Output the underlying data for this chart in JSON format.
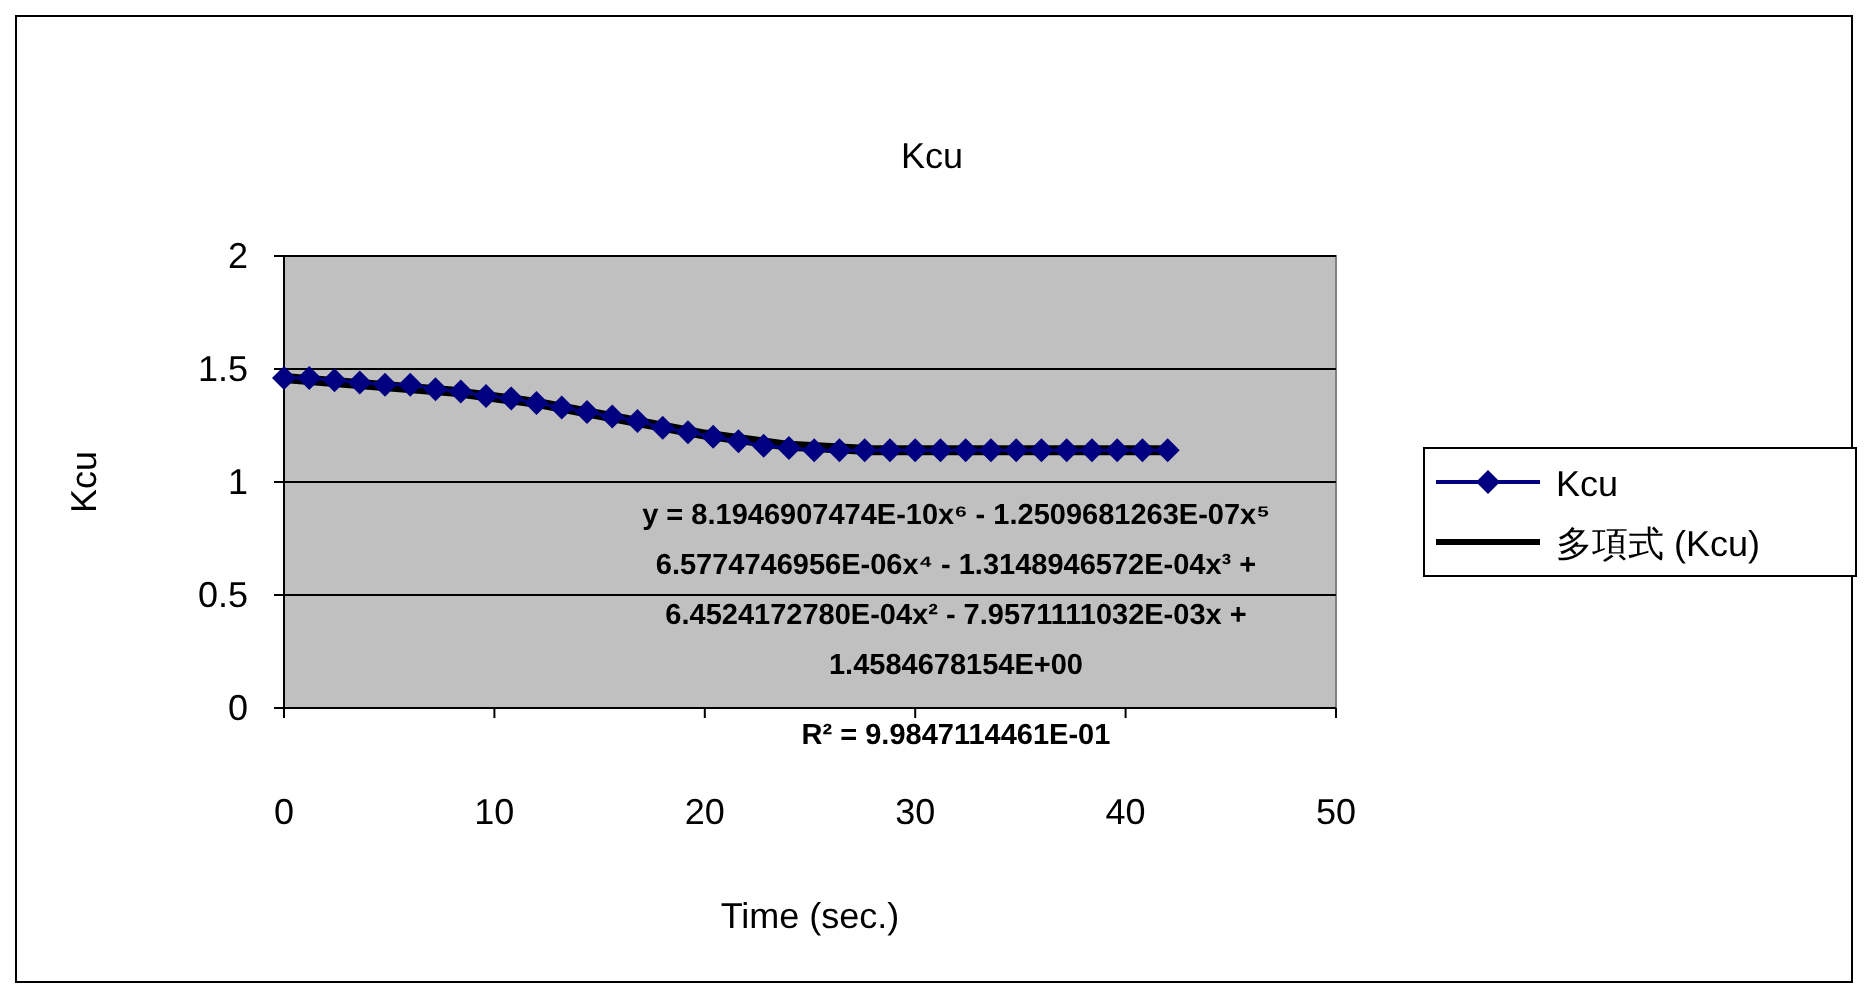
{
  "chart_data": {
    "type": "line",
    "title": "Kcu",
    "xlabel": "Time (sec.)",
    "ylabel": "Kcu",
    "xlim": [
      0,
      50
    ],
    "xticks": [
      0,
      10,
      20,
      30,
      40,
      50
    ],
    "ylim": [
      0,
      2
    ],
    "yticks": [
      0,
      0.5,
      1,
      1.5,
      2
    ],
    "grid": "y",
    "legend": "right",
    "series": [
      {
        "name": "Kcu",
        "color": "#000080",
        "marker": "diamond",
        "x": [
          0,
          1.2,
          2.4,
          3.6,
          4.8,
          6,
          7.2,
          8.4,
          9.6,
          10.8,
          12,
          13.2,
          14.4,
          15.6,
          16.8,
          18,
          19.2,
          20.4,
          21.6,
          22.8,
          24,
          25.2,
          26.4,
          27.6,
          28.8,
          30,
          31.2,
          32.4,
          33.6,
          34.8,
          36,
          37.2,
          38.4,
          39.6,
          40.8,
          42
        ],
        "values": [
          1.46,
          1.46,
          1.45,
          1.44,
          1.43,
          1.43,
          1.41,
          1.4,
          1.38,
          1.37,
          1.35,
          1.33,
          1.31,
          1.29,
          1.27,
          1.24,
          1.22,
          1.2,
          1.18,
          1.16,
          1.15,
          1.14,
          1.14,
          1.14,
          1.14,
          1.14,
          1.14,
          1.14,
          1.14,
          1.14,
          1.14,
          1.14,
          1.14,
          1.14,
          1.14,
          1.14
        ]
      },
      {
        "name": "多項式 (Kcu)",
        "color": "#000000",
        "marker": "none",
        "x": [
          0,
          4,
          8,
          12,
          16,
          20,
          24,
          28,
          32,
          36,
          40,
          42
        ],
        "values": [
          1.46,
          1.43,
          1.4,
          1.35,
          1.28,
          1.21,
          1.16,
          1.14,
          1.14,
          1.14,
          1.14,
          1.14
        ]
      }
    ],
    "annotations": [
      "y = 8.1946907474E-10x⁶ - 1.2509681263E-07x⁵\n6.5774746956E-06x⁴ - 1.3148946572E-04x³ +\n6.4524172780E-04x² - 7.9571111032E-03x +\n1.4584678154E+00",
      "R² = 9.9847114461E-01"
    ]
  }
}
